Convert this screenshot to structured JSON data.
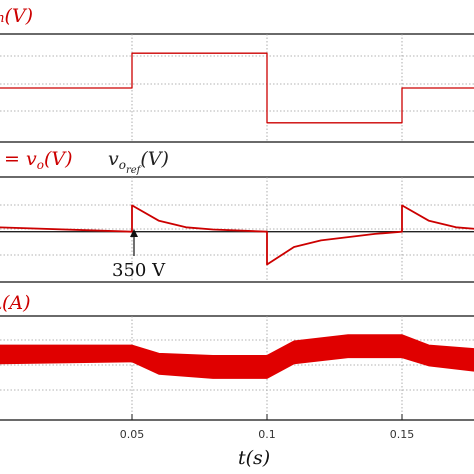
{
  "chart_data": [
    {
      "type": "line",
      "title": "",
      "ylabel": "v_in(V)",
      "ylabel_parts": {
        "main": "in",
        "unit": "(V)"
      },
      "xlim": [
        0,
        0.2
      ],
      "series": [
        {
          "color": "#cc0000",
          "step": true,
          "x": [
            0,
            0.05,
            0.05,
            0.1,
            0.1,
            0.15,
            0.15,
            0.2
          ],
          "y": [
            0,
            0,
            1,
            1,
            -1,
            -1,
            0,
            0
          ]
        }
      ]
    },
    {
      "type": "line",
      "title": "",
      "ylabel": "= v_o(V)   v_o_ref(V)",
      "ylabel_parts": {
        "prefix": "= v",
        "sub": "o",
        "unit": "(V)"
      },
      "ref_label_parts": {
        "main": "v",
        "sub": "o",
        "subsub": "ref",
        "unit": "(V)"
      },
      "annotation": {
        "text": "350 V",
        "x": 0.05,
        "y": 350
      },
      "series": [
        {
          "color": "#222222",
          "x": [
            0,
            0.2
          ],
          "y": [
            350,
            350
          ]
        },
        {
          "color": "#cc0000",
          "x": [
            0,
            0.05,
            0.05,
            0.06,
            0.07,
            0.08,
            0.1,
            0.1,
            0.11,
            0.12,
            0.14,
            0.15,
            0.15,
            0.16,
            0.17,
            0.18,
            0.2
          ],
          "y": [
            352,
            350,
            362,
            355,
            352,
            351,
            350,
            335,
            343,
            346,
            349,
            350,
            362,
            355,
            352,
            351,
            350
          ]
        }
      ]
    },
    {
      "type": "line",
      "title": "",
      "ylabel": "i_L(A)",
      "ylabel_parts": {
        "main": "L",
        "unit": "(A)"
      },
      "series": [
        {
          "color": "#e00000",
          "band": true,
          "x": [
            0,
            0.05,
            0.05,
            0.06,
            0.08,
            0.1,
            0.1,
            0.11,
            0.13,
            0.15,
            0.15,
            0.16,
            0.18,
            0.2
          ],
          "y_upper": [
            14,
            14,
            14,
            10,
            9,
            9,
            9,
            16,
            19,
            19,
            19,
            14,
            12,
            11
          ],
          "y_lower": [
            5,
            6,
            6,
            0,
            -2,
            -2,
            -2,
            5,
            8,
            8,
            8,
            4,
            1,
            0
          ]
        }
      ]
    }
  ],
  "x_axis": {
    "ticks": [
      "0.05",
      "0.1",
      "0.15"
    ],
    "tick_values": [
      0.05,
      0.1,
      0.15
    ],
    "label": "t(s)",
    "label_parts": {
      "main": "t",
      "unit": "(s)"
    }
  }
}
